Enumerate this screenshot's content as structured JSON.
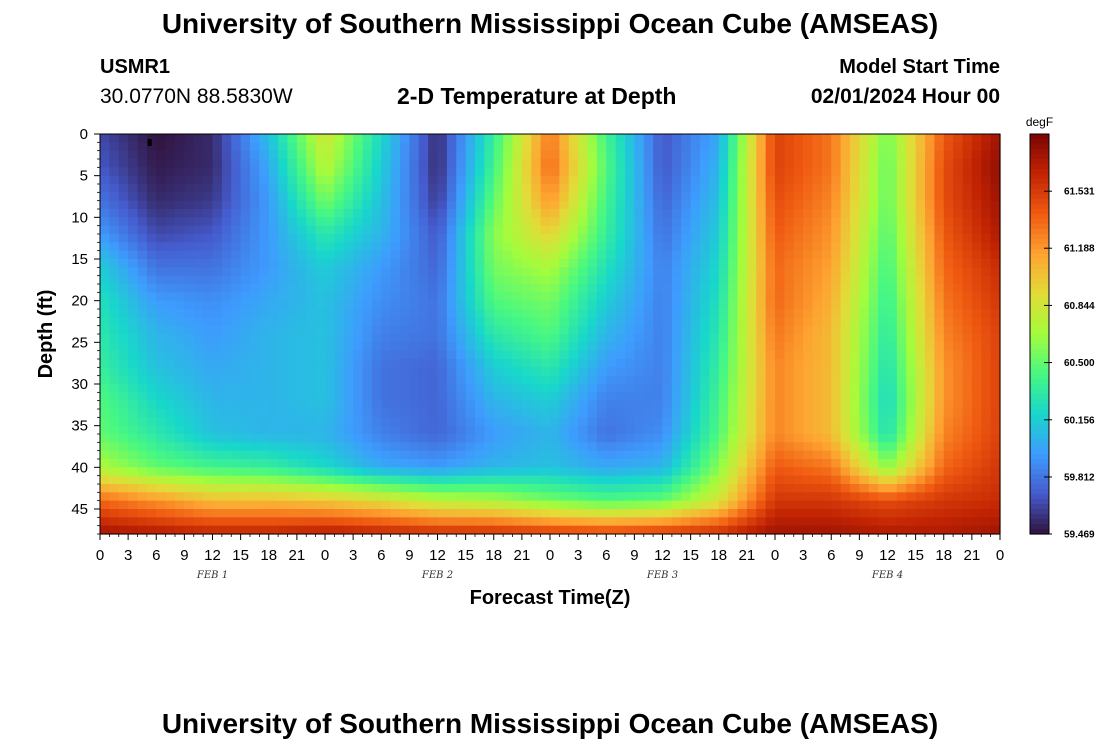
{
  "header": {
    "title": "University of Southern Mississippi Ocean Cube (AMSEAS)",
    "station": "USMR1",
    "coords": "30.0770N  88.5830W",
    "subtitle": "2-D Temperature at Depth",
    "start_label": "Model Start Time",
    "start_value": "02/01/2024 Hour 00"
  },
  "footer": {
    "title": "University of Southern Mississippi Ocean Cube (AMSEAS)"
  },
  "chart_data": {
    "type": "heatmap",
    "title": "2-D Temperature at Depth",
    "xlabel": "Forecast Time(Z)",
    "ylabel": "Depth (ft)",
    "x_ticks": [
      "0",
      "3",
      "6",
      "9",
      "12",
      "15",
      "18",
      "21",
      "0",
      "3",
      "6",
      "9",
      "12",
      "15",
      "18",
      "21",
      "0",
      "3",
      "6",
      "9",
      "12",
      "15",
      "18",
      "21",
      "0",
      "3",
      "6",
      "9",
      "12",
      "15",
      "18",
      "21",
      "0"
    ],
    "x_range_hours": [
      0,
      96
    ],
    "day_labels": [
      {
        "label": "FEB 1",
        "hour": 12
      },
      {
        "label": "FEB 2",
        "hour": 36
      },
      {
        "label": "FEB 3",
        "hour": 60
      },
      {
        "label": "FEB 4",
        "hour": 84
      }
    ],
    "y_ticks": [
      0,
      5,
      10,
      15,
      20,
      25,
      30,
      35,
      40,
      45
    ],
    "y_range_ft": [
      0,
      48
    ],
    "colorbar": {
      "unit": "degF",
      "ticks": [
        "61.531",
        "61.188",
        "60.844",
        "60.500",
        "60.156",
        "59.812",
        "59.469"
      ],
      "range": [
        59.469,
        61.875
      ]
    },
    "z_note": "Temperature (degF) estimated from colors; rows are depth 0-48 ft in 4 ft steps, columns are hours 0-96 in 6 h steps",
    "depths_ft": [
      0,
      4,
      8,
      12,
      16,
      20,
      24,
      28,
      32,
      36,
      40,
      44,
      48
    ],
    "hours": [
      0,
      6,
      12,
      18,
      24,
      30,
      36,
      42,
      48,
      54,
      60,
      66,
      72,
      78,
      84,
      90,
      96
    ],
    "values": [
      [
        59.65,
        59.47,
        59.55,
        60.1,
        60.85,
        60.2,
        59.55,
        60.35,
        61.3,
        60.4,
        59.7,
        60.0,
        61.5,
        61.3,
        60.55,
        61.4,
        61.75
      ],
      [
        59.7,
        59.5,
        59.55,
        60.0,
        60.75,
        60.15,
        59.55,
        60.4,
        61.35,
        60.45,
        59.7,
        60.05,
        61.5,
        61.3,
        60.5,
        61.45,
        61.8
      ],
      [
        59.8,
        59.55,
        59.6,
        59.95,
        60.55,
        60.1,
        59.6,
        60.5,
        61.2,
        60.4,
        59.75,
        60.1,
        61.45,
        61.25,
        60.5,
        61.45,
        61.75
      ],
      [
        59.95,
        59.65,
        59.7,
        59.95,
        60.3,
        60.05,
        59.7,
        60.6,
        60.95,
        60.35,
        59.8,
        60.15,
        61.4,
        61.2,
        60.45,
        61.4,
        61.7
      ],
      [
        60.15,
        59.8,
        59.8,
        59.95,
        60.15,
        59.95,
        59.75,
        60.55,
        60.7,
        60.25,
        59.85,
        60.2,
        61.35,
        61.15,
        60.4,
        61.35,
        61.6
      ],
      [
        60.25,
        59.95,
        59.9,
        60.0,
        60.1,
        59.9,
        59.8,
        60.45,
        60.55,
        60.15,
        59.85,
        60.25,
        61.35,
        61.1,
        60.35,
        61.3,
        61.55
      ],
      [
        60.3,
        60.05,
        59.95,
        60.05,
        60.1,
        59.85,
        59.8,
        60.3,
        60.45,
        60.05,
        59.85,
        60.3,
        61.3,
        61.05,
        60.3,
        61.25,
        61.5
      ],
      [
        60.35,
        60.1,
        60.0,
        60.05,
        60.1,
        59.8,
        59.75,
        60.15,
        60.3,
        59.95,
        59.85,
        60.35,
        61.25,
        61.05,
        60.25,
        61.2,
        61.5
      ],
      [
        60.45,
        60.2,
        60.05,
        60.05,
        60.1,
        59.8,
        59.75,
        60.05,
        60.15,
        59.85,
        59.85,
        60.4,
        61.25,
        61.05,
        60.2,
        61.2,
        61.5
      ],
      [
        60.5,
        60.3,
        60.1,
        60.05,
        60.05,
        59.85,
        59.75,
        59.95,
        60.05,
        59.8,
        59.9,
        60.45,
        61.25,
        61.05,
        60.25,
        61.25,
        61.5
      ],
      [
        60.7,
        60.5,
        60.4,
        60.35,
        60.2,
        60.0,
        59.95,
        60.05,
        60.1,
        60.0,
        60.05,
        60.6,
        61.4,
        61.3,
        60.6,
        61.35,
        61.55
      ],
      [
        61.35,
        61.2,
        61.05,
        61.05,
        61.0,
        60.9,
        60.75,
        60.7,
        60.55,
        60.45,
        60.5,
        60.85,
        61.55,
        61.55,
        61.45,
        61.55,
        61.6
      ],
      [
        61.75,
        61.7,
        61.65,
        61.65,
        61.7,
        61.65,
        61.6,
        61.6,
        61.55,
        61.5,
        61.55,
        61.6,
        61.75,
        61.75,
        61.7,
        61.7,
        61.75
      ]
    ]
  }
}
